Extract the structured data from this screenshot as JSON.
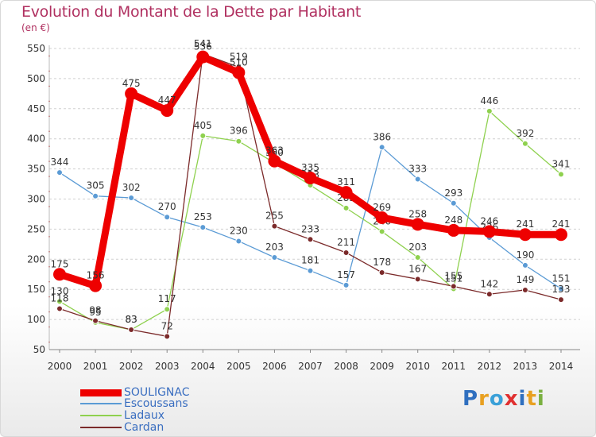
{
  "title": "Evolution du Montant de la Dette par Habitant",
  "unit_label": "(en €)",
  "logo": {
    "letters": [
      "P",
      "r",
      "o",
      "x",
      "i",
      "t",
      "i"
    ],
    "colors": [
      "#2f6fbf",
      "#e8a020",
      "#3aa0d8",
      "#e03030",
      "#2f6fbf",
      "#e8a020",
      "#7ab040"
    ]
  },
  "chart_data": {
    "type": "line",
    "x": [
      "2000",
      "2001",
      "2002",
      "2003",
      "2004",
      "2005",
      "2006",
      "2007",
      "2008",
      "2009",
      "2010",
      "2011",
      "2012",
      "2013",
      "2014"
    ],
    "ylim": [
      50,
      550
    ],
    "yticks": [
      50,
      100,
      150,
      200,
      250,
      300,
      350,
      400,
      450,
      500,
      550
    ],
    "grid": "horizontal dashed",
    "legend_position": "bottom-left",
    "series": [
      {
        "name": "Escoussans",
        "color": "#5b9bd5",
        "values": [
          344,
          305,
          302,
          270,
          253,
          230,
          203,
          181,
          157,
          386,
          333,
          293,
          236,
          190,
          151
        ]
      },
      {
        "name": "Ladaux",
        "color": "#8fd14f",
        "values": [
          130,
          95,
          83,
          117,
          405,
          396,
          360,
          323,
          285,
          246,
          203,
          151,
          446,
          392,
          341
        ]
      },
      {
        "name": "Cardan",
        "color": "#7b2a2a",
        "values": [
          118,
          98,
          83,
          72,
          541,
          519,
          255,
          233,
          211,
          178,
          167,
          155,
          142,
          149,
          133
        ]
      },
      {
        "name": "SOULIGNAC",
        "color": "#ee0000",
        "values": [
          175,
          156,
          475,
          447,
          536,
          510,
          363,
          335,
          311,
          269,
          258,
          248,
          246,
          241,
          241
        ]
      }
    ],
    "legend_order": [
      "SOULIGNAC",
      "Escoussans",
      "Ladaux",
      "Cardan"
    ]
  }
}
